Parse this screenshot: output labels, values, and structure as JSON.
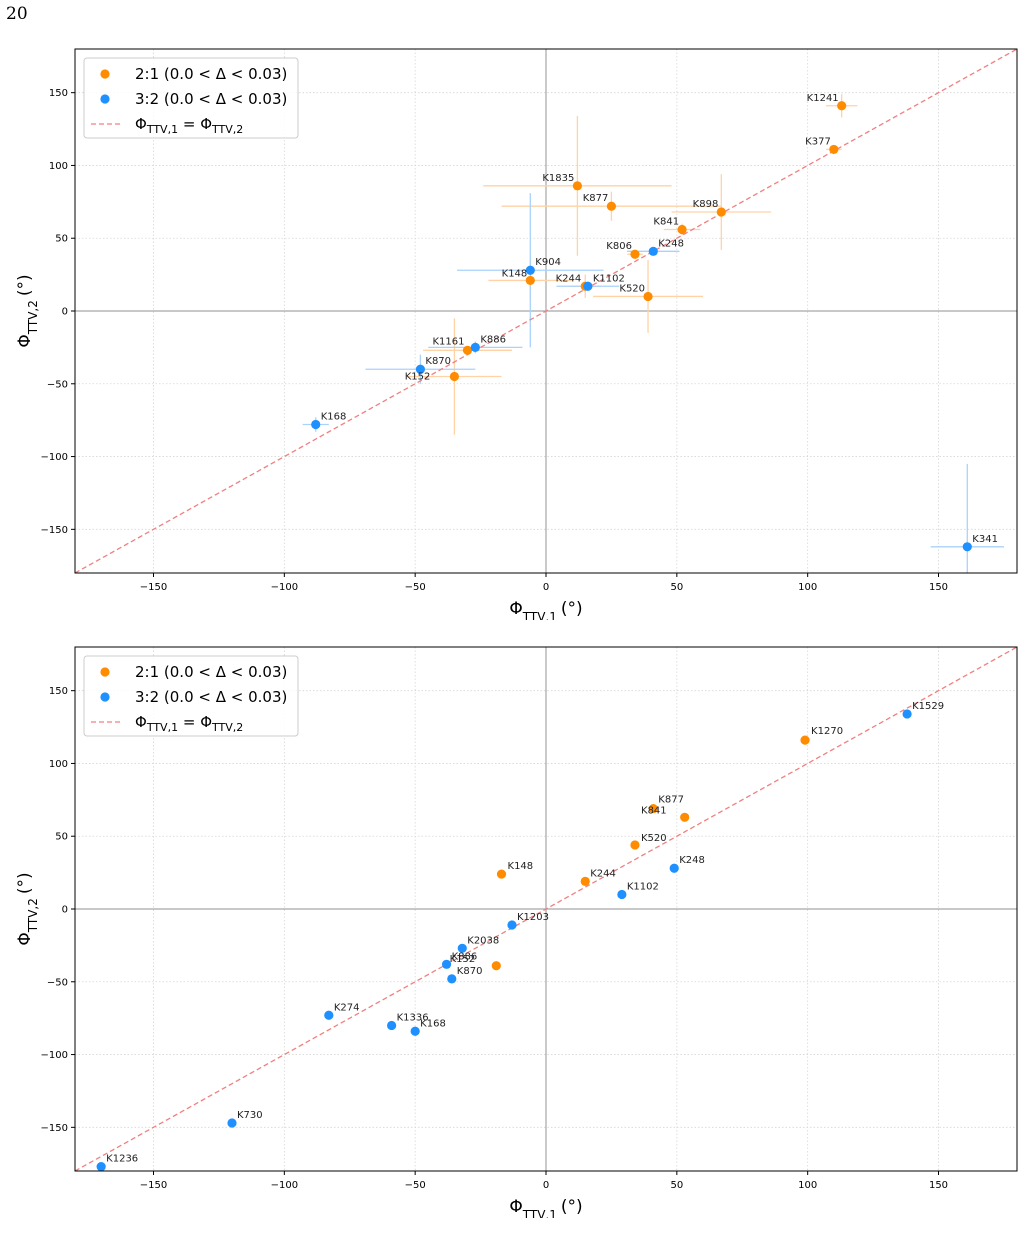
{
  "page": {
    "number": "20"
  },
  "colors": {
    "orange": "#ff8c00",
    "blue": "#1e90ff",
    "orange_err": "#ffd3a6",
    "blue_err": "#a9d3fb",
    "ref_line": "#f08080",
    "axis_zero": "#a6a6a6",
    "grid": "#d6d6d6"
  },
  "legend": {
    "series_21": "2:1 (0.0 < Δ < 0.03)",
    "series_32": "3:2 (0.0 < Δ < 0.03)",
    "reference": "ΦTTV,1 = ΦTTV,2"
  },
  "chart_data": [
    {
      "type": "scatter",
      "xlabel": "ΦTTV,1 (°)",
      "ylabel": "ΦTTV,2 (°)",
      "xlim": [
        -180,
        180
      ],
      "ylim": [
        -180,
        180
      ],
      "xticks": [
        -150,
        -100,
        -50,
        0,
        50,
        100,
        150
      ],
      "yticks": [
        -150,
        -100,
        -50,
        0,
        50,
        100,
        150
      ],
      "grid": true,
      "legend_position": "top-left",
      "reference_line": "y = x",
      "series": [
        {
          "name": "2:1 (0.0 < Δ < 0.03)",
          "color": "#ff8c00",
          "points": [
            {
              "label": "K1241",
              "x": 113,
              "y": 141,
              "xerr": 6,
              "yerr": 8
            },
            {
              "label": "K377",
              "x": 110,
              "y": 111,
              "xerr": 3,
              "yerr": 3
            },
            {
              "label": "K1835",
              "x": 12,
              "y": 86,
              "xerr": 36,
              "yerr": 48
            },
            {
              "label": "K877",
              "x": 25,
              "y": 72,
              "xerr": 42,
              "yerr": 10
            },
            {
              "label": "K898",
              "x": 67,
              "y": 68,
              "xerr": 19,
              "yerr": 26
            },
            {
              "label": "K841",
              "x": 52,
              "y": 56,
              "xerr": 7,
              "yerr": 4
            },
            {
              "label": "K806",
              "x": 34,
              "y": 39,
              "xerr": 3,
              "yerr": 3
            },
            {
              "label": "K148",
              "x": -6,
              "y": 21,
              "xerr": 16,
              "yerr": 14
            },
            {
              "label": "K244",
              "x": 15,
              "y": 17,
              "xerr": 6,
              "yerr": 8
            },
            {
              "label": "K520",
              "x": 39,
              "y": 10,
              "xerr": 21,
              "yerr": 25
            },
            {
              "label": "K1161",
              "x": -30,
              "y": -27,
              "xerr": 17,
              "yerr": 3
            },
            {
              "label": "K152",
              "x": -35,
              "y": -45,
              "xerr": 18,
              "yerr": 40
            }
          ]
        },
        {
          "name": "3:2 (0.0 < Δ < 0.03)",
          "color": "#1e90ff",
          "points": [
            {
              "label": "K248",
              "x": 41,
              "y": 41,
              "xerr": 10,
              "yerr": 2
            },
            {
              "label": "K904",
              "x": -6,
              "y": 28,
              "xerr": 28,
              "yerr": 53
            },
            {
              "label": "K1102",
              "x": 16,
              "y": 17,
              "xerr": 12,
              "yerr": 3
            },
            {
              "label": "K886",
              "x": -27,
              "y": -25,
              "xerr": 18,
              "yerr": 4
            },
            {
              "label": "K870",
              "x": -48,
              "y": -40,
              "xerr": 21,
              "yerr": 10
            },
            {
              "label": "K168",
              "x": -88,
              "y": -78,
              "xerr": 5,
              "yerr": 5
            },
            {
              "label": "K341",
              "x": 161,
              "y": -162,
              "xerr": 14,
              "yerr": 57
            }
          ]
        }
      ]
    },
    {
      "type": "scatter",
      "xlabel": "ΦTTV,1 (°)",
      "ylabel": "ΦTTV,2 (°)",
      "xlim": [
        -180,
        180
      ],
      "ylim": [
        -180,
        180
      ],
      "xticks": [
        -150,
        -100,
        -50,
        0,
        50,
        100,
        150
      ],
      "yticks": [
        -150,
        -100,
        -50,
        0,
        50,
        100,
        150
      ],
      "grid": true,
      "legend_position": "top-left",
      "reference_line": "y = x",
      "series": [
        {
          "name": "2:1 (0.0 < Δ < 0.03)",
          "color": "#ff8c00",
          "points": [
            {
              "label": "K1270",
              "x": 99,
              "y": 116
            },
            {
              "label": "K877",
              "x": 41,
              "y": 69
            },
            {
              "label": "K841",
              "x": 53,
              "y": 63
            },
            {
              "label": "K520",
              "x": 34,
              "y": 44
            },
            {
              "label": "K148",
              "x": -17,
              "y": 24
            },
            {
              "label": "K244",
              "x": 15,
              "y": 19
            },
            {
              "label": "K152",
              "x": -19,
              "y": -39
            }
          ]
        },
        {
          "name": "3:2 (0.0 < Δ < 0.03)",
          "color": "#1e90ff",
          "points": [
            {
              "label": "K1529",
              "x": 138,
              "y": 134
            },
            {
              "label": "K248",
              "x": 49,
              "y": 28
            },
            {
              "label": "K1102",
              "x": 29,
              "y": 10
            },
            {
              "label": "K1203",
              "x": -13,
              "y": -11
            },
            {
              "label": "K2038",
              "x": -32,
              "y": -27
            },
            {
              "label": "K886",
              "x": -38,
              "y": -38
            },
            {
              "label": "K870",
              "x": -36,
              "y": -48
            },
            {
              "label": "K274",
              "x": -83,
              "y": -73
            },
            {
              "label": "K1336",
              "x": -59,
              "y": -80
            },
            {
              "label": "K168",
              "x": -50,
              "y": -84
            },
            {
              "label": "K730",
              "x": -120,
              "y": -147
            },
            {
              "label": "K1236",
              "x": -170,
              "y": -177
            }
          ]
        }
      ]
    }
  ]
}
